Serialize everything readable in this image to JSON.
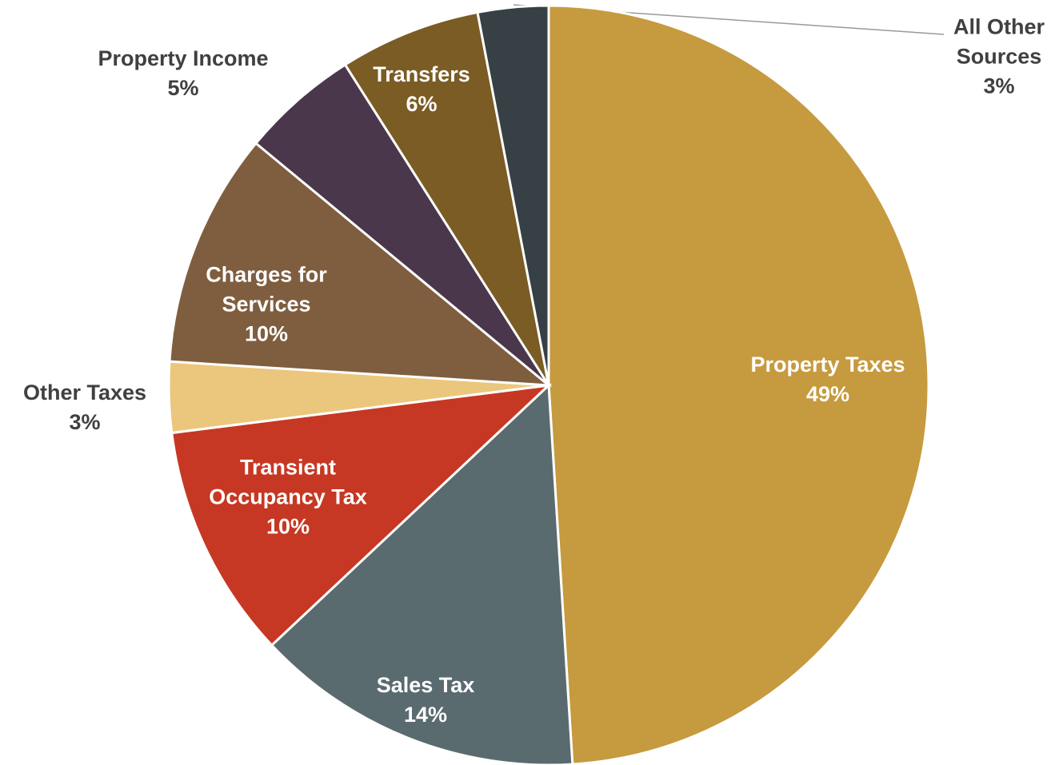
{
  "chart_data": {
    "type": "pie",
    "categories": [
      "Property Taxes",
      "Sales Tax",
      "Transient Occupancy Tax",
      "Other Taxes",
      "Charges for Services",
      "Property Income",
      "Transfers",
      "All Other Sources"
    ],
    "values": [
      49,
      14,
      10,
      3,
      10,
      5,
      6,
      3
    ],
    "value_labels": [
      "49%",
      "14%",
      "10%",
      "3%",
      "10%",
      "5%",
      "6%",
      "3%"
    ],
    "colors": [
      "#c69a3e",
      "#5a6b70",
      "#c63823",
      "#ebc77d",
      "#7f5e3f",
      "#4a374c",
      "#7a5c24",
      "#364045"
    ]
  }
}
